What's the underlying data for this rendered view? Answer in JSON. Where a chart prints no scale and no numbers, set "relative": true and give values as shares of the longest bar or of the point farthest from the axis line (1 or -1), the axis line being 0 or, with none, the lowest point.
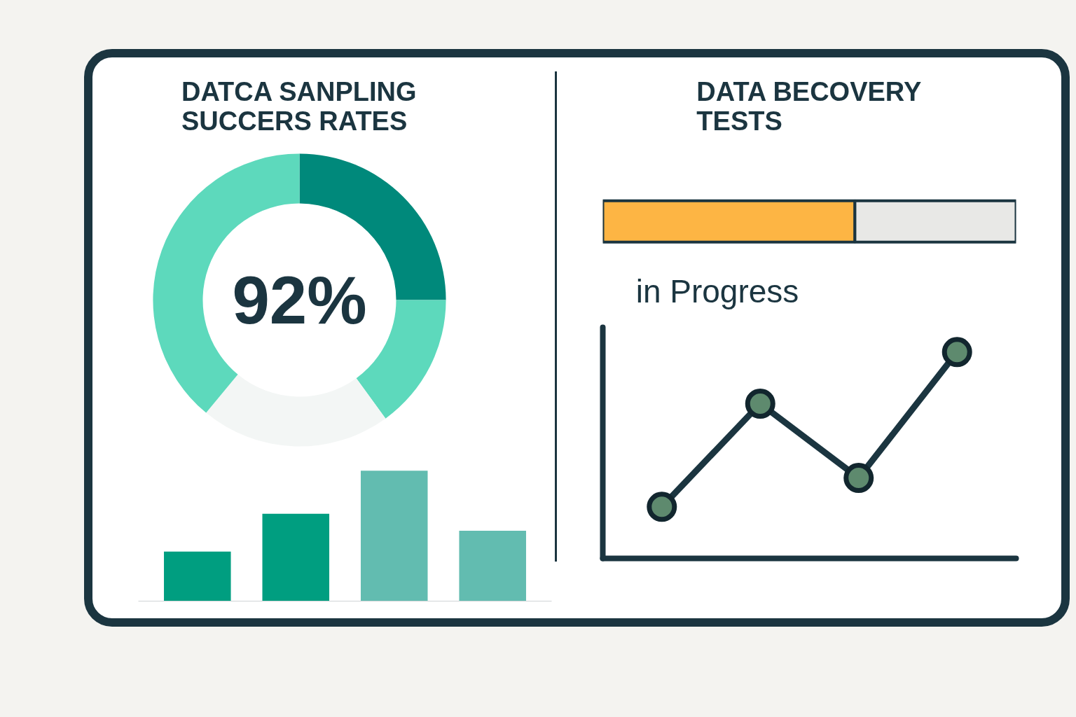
{
  "chart_data": [
    {
      "type": "donut",
      "title": "DATCA SANPLING SUCCERS RATES",
      "categories": [
        null,
        null,
        null,
        null
      ],
      "values": [
        25,
        15,
        21,
        39
      ],
      "colors": [
        "#00897b",
        "#5dd9bc",
        "#f3f6f5",
        "#5dd9bc"
      ],
      "annotations": [
        "92%"
      ]
    },
    {
      "type": "bar",
      "title": "DATA BECOVERY TESTS",
      "orientation": "horizontal",
      "stacked": true,
      "relative": true,
      "categories": [
        null
      ],
      "series": [
        {
          "color": "#fdb544",
          "values": [
            0.61
          ]
        },
        {
          "color": "#e8e8e6",
          "values": [
            0.39
          ]
        }
      ],
      "annotations": [
        "in Progress"
      ]
    },
    {
      "type": "bar",
      "relative": true,
      "categories": [
        null,
        null,
        null,
        null
      ],
      "values": [
        0.38,
        0.67,
        1,
        0.54
      ],
      "colors": [
        "#009e80",
        "#009e80",
        "#62bcb0",
        "#62bcb0"
      ]
    },
    {
      "type": "line",
      "relative": true,
      "marker": "circle",
      "categories": [
        null,
        null,
        null,
        null
      ],
      "series": [
        {
          "color": "#1b3540",
          "values": [
            0.25,
            0.75,
            0.39,
            1
          ]
        }
      ]
    }
  ]
}
